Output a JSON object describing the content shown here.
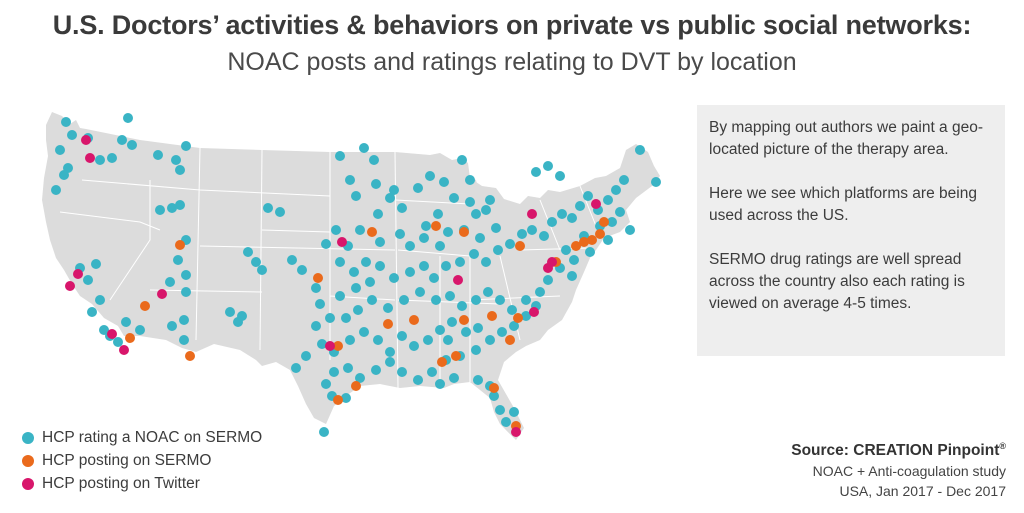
{
  "header": {
    "title": "U.S. Doctors’ activities & behaviors on private vs public social networks:",
    "subtitle": "NOAC posts and ratings relating to DVT by location"
  },
  "info_box": {
    "paragraphs": [
      "By mapping out authors we paint a geo-located picture of the therapy area.",
      "Here we see which platforms are being used across the US.",
      "SERMO drug ratings are well spread across the country also each rating is viewed on average 4-5 times."
    ]
  },
  "legend": {
    "items": [
      {
        "label": "HCP rating a NOAC on SERMO",
        "color": "#3ab4c5"
      },
      {
        "label": "HCP posting on SERMO",
        "color": "#ea6a1c"
      },
      {
        "label": "HCP posting on Twitter",
        "color": "#d8166b"
      }
    ]
  },
  "source": {
    "title": "Source: CREATION Pinpoint",
    "mark": "®",
    "line1": "NOAC + Anti-coagulation study",
    "line2": "USA, Jan 2017 - Dec 2017"
  },
  "colors": {
    "land": "#dcdcdc",
    "border": "#ffffff",
    "sermo_rating": "#3ab4c5",
    "sermo_post": "#ea6a1c",
    "twitter_post": "#d8166b"
  }
}
